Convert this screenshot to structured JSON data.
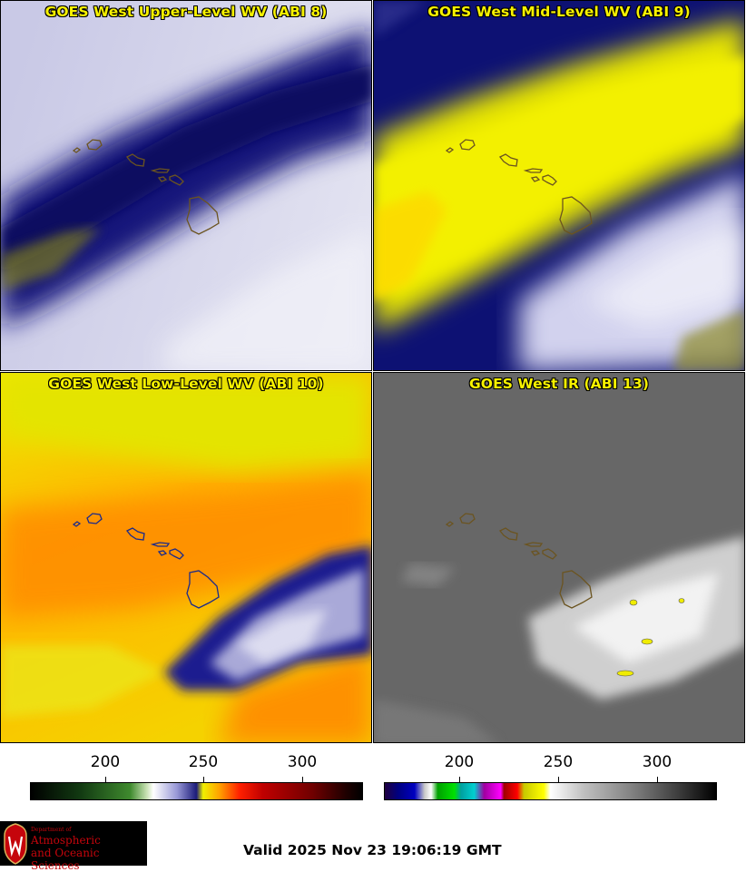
{
  "panels": [
    {
      "title": "GOES West Upper-Level WV (ABI 8)"
    },
    {
      "title": "GOES West Mid-Level WV (ABI 9)"
    },
    {
      "title": "GOES West Low-Level WV (ABI 10)"
    },
    {
      "title": "GOES West IR (ABI 13)"
    }
  ],
  "colorbars": {
    "wv": {
      "ticks": [
        "200",
        "250",
        "300"
      ]
    },
    "ir": {
      "ticks": [
        "200",
        "250",
        "300"
      ]
    }
  },
  "logo": {
    "line1": "Department of",
    "line2": "Atmospheric",
    "line3": "and Oceanic Sciences"
  },
  "footer": {
    "valid_text": "Valid 2025 Nov 23 19:06:19 GMT"
  },
  "colors": {
    "title_yellow": "#f7f200",
    "uw_red": "#c5050c"
  }
}
